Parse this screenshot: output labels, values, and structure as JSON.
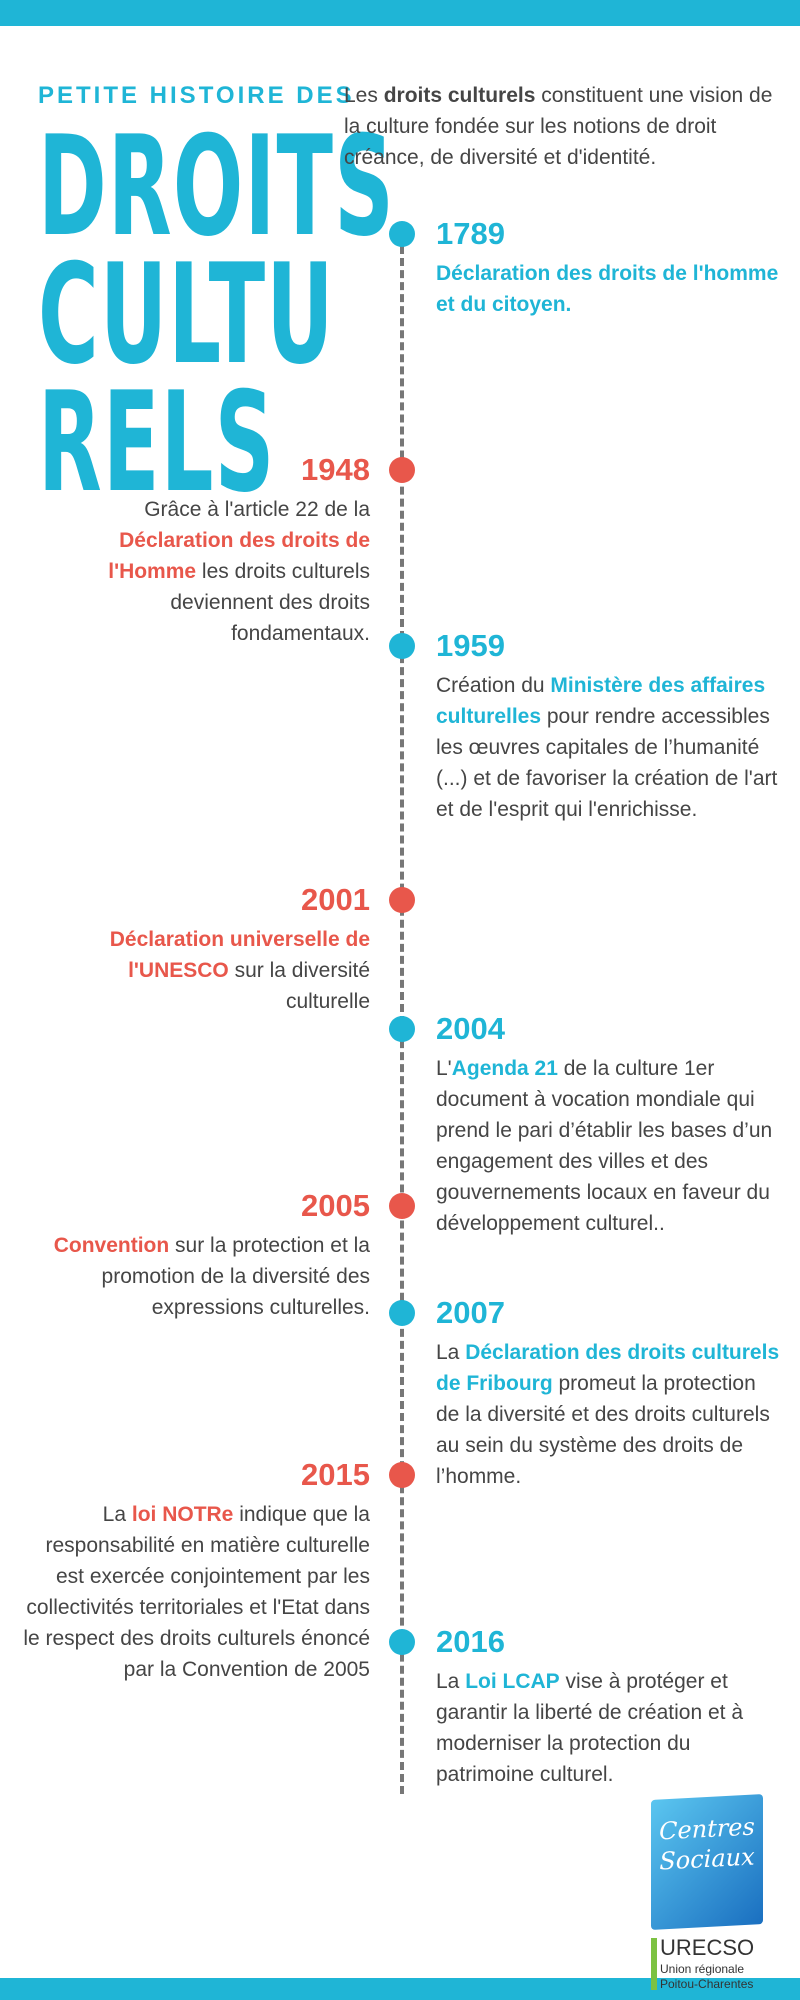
{
  "header": {
    "kicker": "PETITE HISTOIRE DES",
    "title_lines": [
      "DROITS",
      "CULTU",
      "RELS"
    ]
  },
  "intro": [
    {
      "text": "Les "
    },
    {
      "text": "droits culturels",
      "strong": true
    },
    {
      "text": " constituent une vision de la culture fondée sur les notions de droit créance, de diversité et d'identité."
    }
  ],
  "events": [
    {
      "year": "1789",
      "side": "right",
      "color": "blue",
      "text": [
        {
          "text": "Déclaration des droits de l'homme et du citoyen.",
          "strong": true
        }
      ]
    },
    {
      "year": "1948",
      "side": "left",
      "color": "red",
      "text": [
        {
          "text": "Grâce à l'article 22 de la "
        },
        {
          "text": "Déclaration des droits de l'Homme",
          "strong": true
        },
        {
          "text": " les droits culturels deviennent des droits fondamentaux."
        }
      ]
    },
    {
      "year": "1959",
      "side": "right",
      "color": "blue",
      "text": [
        {
          "text": "Création du "
        },
        {
          "text": "Ministère des affaires culturelles",
          "strong": true
        },
        {
          "text": " pour rendre accessibles les œuvres capitales de l’humanité (...) et de favoriser la création de l'art et de l'esprit qui l'enrichisse."
        }
      ]
    },
    {
      "year": "2001",
      "side": "left",
      "color": "red",
      "text": [
        {
          "text": "Déclaration universelle de l'UNESCO",
          "strong": true
        },
        {
          "text": " sur la diversité culturelle"
        }
      ]
    },
    {
      "year": "2004",
      "side": "right",
      "color": "blue",
      "text": [
        {
          "text": "L'"
        },
        {
          "text": "Agenda 21",
          "strong": true
        },
        {
          "text": " de la culture 1er document à vocation mondiale qui prend le pari d’établir les bases d’un engagement des villes et des gouvernements locaux en faveur du développement culturel.."
        }
      ]
    },
    {
      "year": "2005",
      "side": "left",
      "color": "red",
      "text": [
        {
          "text": "Convention",
          "strong": true
        },
        {
          "text": " sur la protection et la promotion de la diversité des expressions culturelles."
        }
      ]
    },
    {
      "year": "2007",
      "side": "right",
      "color": "blue",
      "text": [
        {
          "text": "La "
        },
        {
          "text": "Déclaration des droits culturels de Fribourg",
          "strong": true
        },
        {
          "text": " promeut la protection de la diversité et des droits culturels au sein du système des droits de l’homme."
        }
      ]
    },
    {
      "year": "2015",
      "side": "left",
      "color": "red",
      "text": [
        {
          "text": "La "
        },
        {
          "text": "loi NOTRe",
          "strong": true
        },
        {
          "text": "  indique que la responsabilité en matière culturelle est exercée conjointement par les collectivités territoriales et l'Etat dans le respect des droits culturels énoncé par la Convention de 2005"
        }
      ]
    },
    {
      "year": "2016",
      "side": "right",
      "color": "blue",
      "text": [
        {
          "text": "La "
        },
        {
          "text": "Loi LCAP",
          "strong": true
        },
        {
          "text": " vise à protéger et garantir la liberté de création et à moderniser la protection du patrimoine culturel."
        }
      ]
    }
  ],
  "logo": {
    "script": [
      "Centres",
      "Sociaux"
    ],
    "name": "URECSO",
    "subtitle_lines": [
      "Union régionale",
      "Poitou-Charentes"
    ]
  }
}
